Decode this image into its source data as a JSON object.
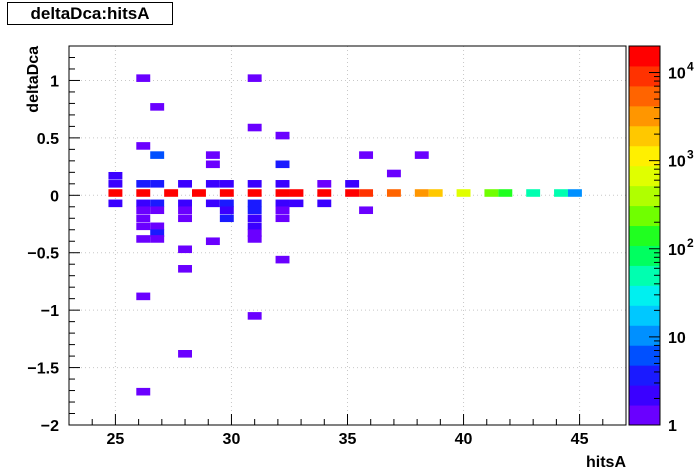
{
  "title": "deltaDca:hitsA",
  "chart_data": {
    "type": "heatmap",
    "title": "deltaDca:hitsA",
    "xlabel": "hitsA",
    "ylabel": "deltaDca",
    "xlim": [
      23,
      47
    ],
    "ylim": [
      -2,
      1.3
    ],
    "z_scale": "log",
    "zlim": [
      1,
      20000
    ],
    "grid": true,
    "x_ticks": [
      {
        "v": 25,
        "label": "25"
      },
      {
        "v": 30,
        "label": "30"
      },
      {
        "v": 35,
        "label": "35"
      },
      {
        "v": 40,
        "label": "40"
      },
      {
        "v": 45,
        "label": "45"
      }
    ],
    "y_ticks": [
      {
        "v": 1,
        "label": "1"
      },
      {
        "v": 0.5,
        "label": "0.5"
      },
      {
        "v": 0,
        "label": "0"
      },
      {
        "v": -0.5,
        "label": "−0.5"
      },
      {
        "v": -1,
        "label": "−1"
      },
      {
        "v": -1.5,
        "label": "−1.5"
      },
      {
        "v": -2,
        "label": "−2"
      }
    ],
    "z_ticks": [
      {
        "v": 1,
        "label": "1"
      },
      {
        "v": 10,
        "label": "10"
      },
      {
        "v": 100,
        "label": "10",
        "exp": "2"
      },
      {
        "v": 1000,
        "label": "10",
        "exp": "3"
      },
      {
        "v": 10000,
        "label": "10",
        "exp": "4"
      }
    ],
    "bin_size": {
      "x": 0.6,
      "y": 0.066
    },
    "cells": [
      [
        25,
        0.02,
        20000
      ],
      [
        26.2,
        0.02,
        20000
      ],
      [
        27.4,
        0.02,
        20000
      ],
      [
        28.6,
        0.02,
        20000
      ],
      [
        29.8,
        0.02,
        20000
      ],
      [
        31,
        0.02,
        20000
      ],
      [
        32.2,
        0.02,
        20000
      ],
      [
        32.8,
        0.02,
        20000
      ],
      [
        34,
        0.02,
        15000
      ],
      [
        35.2,
        0.02,
        12000
      ],
      [
        35.8,
        0.02,
        9000
      ],
      [
        37,
        0.02,
        5000
      ],
      [
        38.2,
        0.02,
        3000
      ],
      [
        38.8,
        0.02,
        2000
      ],
      [
        40,
        0.02,
        700
      ],
      [
        41.2,
        0.02,
        300
      ],
      [
        41.8,
        0.02,
        150
      ],
      [
        43,
        0.02,
        60
      ],
      [
        44.2,
        0.02,
        40
      ],
      [
        44.8,
        0.02,
        10
      ],
      [
        25,
        0.1,
        2
      ],
      [
        25,
        0.17,
        2
      ],
      [
        25,
        -0.07,
        2
      ],
      [
        26.2,
        1.02,
        1
      ],
      [
        26.8,
        0.77,
        1
      ],
      [
        26.2,
        0.43,
        1
      ],
      [
        26.8,
        0.35,
        5
      ],
      [
        26.2,
        0.1,
        3
      ],
      [
        26.8,
        0.1,
        4
      ],
      [
        28,
        0.1,
        2
      ],
      [
        29.2,
        0.35,
        1
      ],
      [
        29.2,
        0.27,
        1
      ],
      [
        29.2,
        0.1,
        2
      ],
      [
        29.8,
        0.1,
        2
      ],
      [
        31,
        1.02,
        1
      ],
      [
        31,
        0.59,
        1
      ],
      [
        31,
        0.1,
        2
      ],
      [
        32.2,
        0.52,
        1
      ],
      [
        32.2,
        0.27,
        3
      ],
      [
        32.2,
        0.1,
        2
      ],
      [
        34,
        0.1,
        1
      ],
      [
        35.2,
        0.1,
        2
      ],
      [
        35.8,
        0.35,
        1
      ],
      [
        37,
        0.19,
        1
      ],
      [
        38.2,
        0.35,
        1
      ],
      [
        26.2,
        -0.07,
        2
      ],
      [
        26.2,
        -0.13,
        1
      ],
      [
        26.2,
        -0.2,
        1
      ],
      [
        26.2,
        -0.27,
        1
      ],
      [
        26.8,
        -0.07,
        4
      ],
      [
        26.8,
        -0.13,
        1
      ],
      [
        26.8,
        -0.27,
        1
      ],
      [
        26.8,
        -0.33,
        3
      ],
      [
        26.8,
        -0.38,
        1
      ],
      [
        26.2,
        -0.38,
        1
      ],
      [
        28,
        -0.07,
        2
      ],
      [
        28,
        -0.13,
        1
      ],
      [
        28,
        -0.2,
        1
      ],
      [
        28,
        -0.47,
        1
      ],
      [
        28,
        -0.64,
        1
      ],
      [
        29.2,
        -0.07,
        2
      ],
      [
        29.8,
        -0.07,
        3
      ],
      [
        29.8,
        -0.13,
        2
      ],
      [
        29.8,
        -0.2,
        3
      ],
      [
        29.2,
        -0.4,
        1
      ],
      [
        31,
        -0.07,
        3
      ],
      [
        31,
        -0.13,
        3
      ],
      [
        31,
        -0.2,
        2
      ],
      [
        31,
        -0.27,
        2
      ],
      [
        31,
        -0.33,
        1
      ],
      [
        31,
        -0.38,
        1
      ],
      [
        32.2,
        -0.07,
        2
      ],
      [
        32.2,
        -0.13,
        1
      ],
      [
        32.2,
        -0.2,
        1
      ],
      [
        32.8,
        -0.07,
        2
      ],
      [
        34,
        -0.07,
        2
      ],
      [
        32.2,
        -0.56,
        1
      ],
      [
        35.8,
        -0.13,
        1
      ],
      [
        26.2,
        -0.88,
        1
      ],
      [
        31,
        -1.05,
        1
      ],
      [
        28,
        -1.38,
        1
      ],
      [
        26.2,
        -1.71,
        1
      ]
    ]
  }
}
